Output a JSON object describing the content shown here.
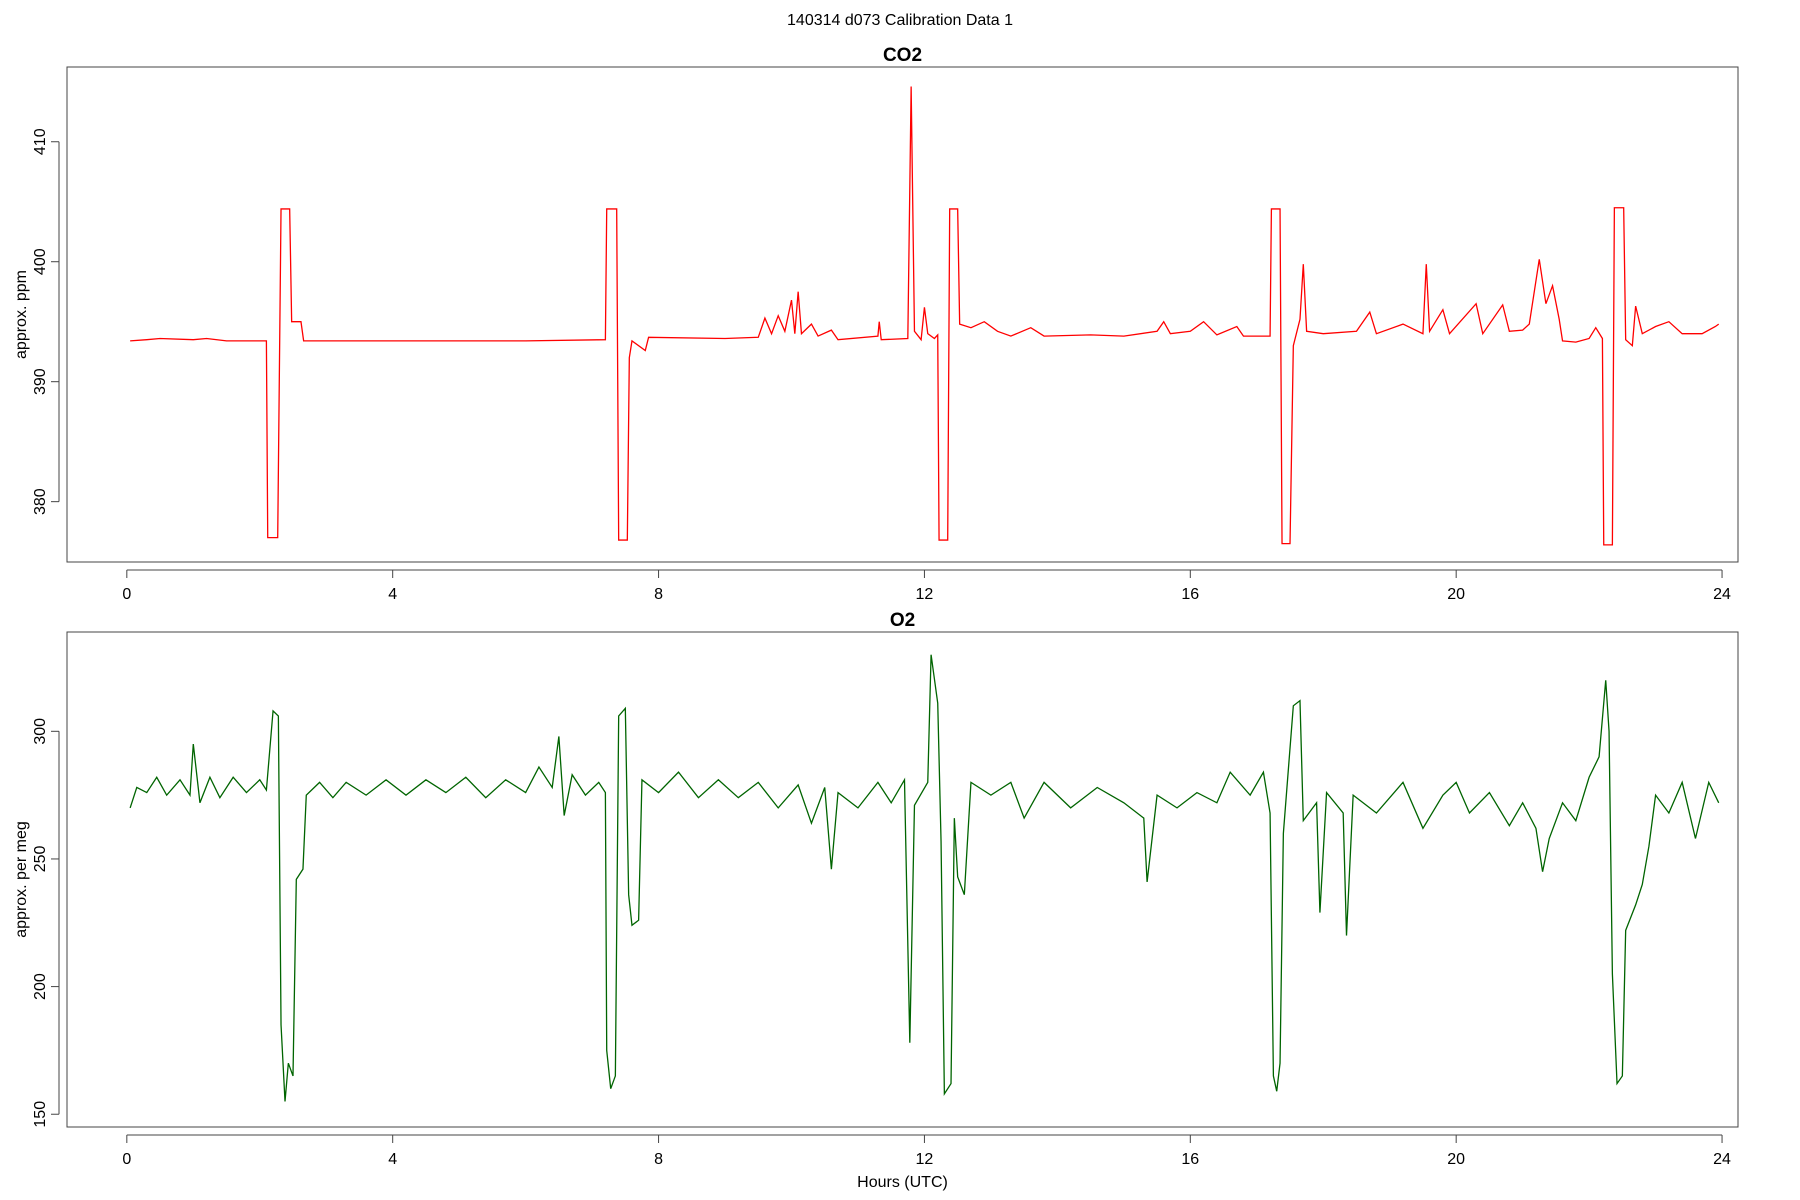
{
  "title": "140314   d073   Calibration Data 1",
  "chart_data": [
    {
      "type": "line",
      "title": "CO2",
      "ylabel": "approx. ppm",
      "color": "#ff0000",
      "x": [
        0.05,
        0.3,
        0.5,
        1.0,
        1.2,
        1.5,
        2.1,
        2.12,
        2.27,
        2.32,
        2.45,
        2.48,
        2.62,
        2.66,
        3.0,
        4.0,
        5.0,
        6.0,
        7.2,
        7.22,
        7.37,
        7.4,
        7.53,
        7.56,
        7.6,
        7.8,
        7.85,
        9.0,
        9.5,
        9.6,
        9.7,
        9.8,
        9.9,
        10.0,
        10.05,
        10.1,
        10.15,
        10.3,
        10.4,
        10.6,
        10.7,
        11.3,
        11.32,
        11.35,
        11.75,
        11.8,
        11.85,
        11.95,
        12.0,
        12.05,
        12.15,
        12.2,
        12.22,
        12.35,
        12.38,
        12.5,
        12.53,
        12.7,
        12.9,
        13.1,
        13.3,
        13.6,
        13.8,
        14.5,
        15.0,
        15.5,
        15.6,
        15.7,
        16.0,
        16.2,
        16.4,
        16.7,
        16.8,
        17.2,
        17.22,
        17.35,
        17.38,
        17.5,
        17.55,
        17.65,
        17.7,
        17.75,
        18.0,
        18.5,
        18.7,
        18.8,
        19.2,
        19.5,
        19.55,
        19.6,
        19.8,
        19.9,
        20.3,
        20.4,
        20.7,
        20.8,
        21.0,
        21.1,
        21.25,
        21.35,
        21.45,
        21.55,
        21.6,
        21.8,
        22.0,
        22.1,
        22.2,
        22.22,
        22.35,
        22.38,
        22.52,
        22.55,
        22.65,
        22.7,
        22.8,
        23.0,
        23.2,
        23.4,
        23.7,
        23.9,
        23.95
      ],
      "values": [
        393.4,
        393.5,
        393.6,
        393.5,
        393.6,
        393.4,
        393.4,
        377.0,
        377.0,
        404.4,
        404.4,
        395.0,
        395.0,
        393.4,
        393.4,
        393.4,
        393.4,
        393.4,
        393.5,
        404.4,
        404.4,
        376.8,
        376.8,
        392.0,
        393.4,
        392.6,
        393.7,
        393.6,
        393.7,
        395.3,
        394.0,
        395.5,
        394.2,
        396.8,
        394.0,
        397.5,
        394.0,
        394.8,
        393.8,
        394.3,
        393.5,
        393.8,
        395.0,
        393.5,
        393.6,
        414.6,
        394.2,
        393.5,
        396.2,
        394.0,
        393.6,
        393.9,
        376.8,
        376.8,
        404.4,
        404.4,
        394.8,
        394.5,
        395.0,
        394.2,
        393.8,
        394.5,
        393.8,
        393.9,
        393.8,
        394.2,
        395.0,
        394.0,
        394.2,
        395.0,
        393.9,
        394.6,
        393.8,
        393.8,
        404.4,
        404.4,
        376.5,
        376.5,
        393.0,
        395.2,
        399.8,
        394.2,
        394.0,
        394.2,
        395.8,
        394.0,
        394.8,
        394.0,
        399.8,
        394.2,
        396.0,
        394.0,
        396.5,
        394.0,
        396.4,
        394.2,
        394.3,
        394.8,
        400.2,
        396.5,
        398.0,
        395.2,
        393.4,
        393.3,
        393.6,
        394.5,
        393.6,
        376.4,
        376.4,
        404.5,
        404.5,
        393.5,
        393.0,
        396.3,
        394.0,
        394.6,
        395.0,
        394.0,
        394.0,
        394.6,
        394.8
      ],
      "xlim": [
        -0.9,
        24.24
      ],
      "xticks": [
        0,
        4,
        8,
        12,
        16,
        20,
        24
      ],
      "ylim": [
        374.97,
        416.23
      ],
      "yticks": [
        380,
        390,
        400,
        410
      ]
    },
    {
      "type": "line",
      "title": "O2",
      "ylabel": "approx. per meg",
      "xlabel": "Hours (UTC)",
      "color": "#006400",
      "x": [
        0.05,
        0.15,
        0.3,
        0.45,
        0.6,
        0.8,
        0.95,
        1.0,
        1.1,
        1.25,
        1.4,
        1.6,
        1.8,
        2.0,
        2.1,
        2.2,
        2.28,
        2.32,
        2.38,
        2.43,
        2.5,
        2.55,
        2.65,
        2.7,
        2.9,
        3.1,
        3.3,
        3.6,
        3.9,
        4.2,
        4.5,
        4.8,
        5.1,
        5.4,
        5.7,
        6.0,
        6.2,
        6.4,
        6.5,
        6.58,
        6.7,
        6.9,
        7.1,
        7.2,
        7.22,
        7.28,
        7.35,
        7.4,
        7.5,
        7.55,
        7.6,
        7.7,
        7.75,
        8.0,
        8.3,
        8.6,
        8.9,
        9.2,
        9.5,
        9.8,
        10.1,
        10.3,
        10.5,
        10.6,
        10.7,
        11.0,
        11.3,
        11.5,
        11.7,
        11.78,
        11.85,
        12.05,
        12.1,
        12.2,
        12.25,
        12.3,
        12.4,
        12.45,
        12.5,
        12.6,
        12.7,
        13.0,
        13.3,
        13.5,
        13.8,
        14.2,
        14.6,
        15.0,
        15.3,
        15.35,
        15.5,
        15.8,
        16.1,
        16.4,
        16.6,
        16.9,
        17.1,
        17.2,
        17.25,
        17.3,
        17.35,
        17.4,
        17.55,
        17.65,
        17.7,
        17.9,
        17.95,
        18.05,
        18.3,
        18.35,
        18.45,
        18.8,
        19.2,
        19.5,
        19.8,
        20.0,
        20.2,
        20.5,
        20.8,
        21.0,
        21.2,
        21.3,
        21.4,
        21.6,
        21.8,
        22.0,
        22.15,
        22.25,
        22.3,
        22.35,
        22.42,
        22.5,
        22.55,
        22.7,
        22.8,
        22.9,
        23.0,
        23.2,
        23.4,
        23.6,
        23.8,
        23.95
      ],
      "values": [
        270,
        278,
        276,
        282,
        275,
        281,
        275,
        295,
        272,
        282,
        274,
        282,
        276,
        281,
        277,
        308,
        306,
        185,
        155,
        170,
        165,
        242,
        246,
        275,
        280,
        274,
        280,
        275,
        281,
        275,
        281,
        276,
        282,
        274,
        281,
        276,
        286,
        278,
        298,
        267,
        283,
        275,
        280,
        276,
        175,
        160,
        165,
        306,
        309,
        236,
        224,
        226,
        281,
        276,
        284,
        274,
        281,
        274,
        280,
        270,
        279,
        264,
        278,
        246,
        276,
        270,
        280,
        272,
        281,
        178,
        271,
        280,
        330,
        311,
        257,
        158,
        162,
        266,
        243,
        236,
        280,
        275,
        280,
        266,
        280,
        270,
        278,
        272,
        266,
        241,
        275,
        270,
        276,
        272,
        284,
        275,
        284,
        268,
        165,
        159,
        170,
        260,
        310,
        312,
        265,
        272,
        229,
        276,
        268,
        220,
        275,
        268,
        280,
        262,
        275,
        280,
        268,
        276,
        263,
        272,
        262,
        245,
        258,
        272,
        265,
        282,
        290,
        320,
        300,
        205,
        162,
        165,
        222,
        232,
        240,
        255,
        275,
        268,
        280,
        258,
        280,
        272
      ],
      "xlim": [
        -0.9,
        24.24
      ],
      "xticks": [
        0,
        4,
        8,
        12,
        16,
        20,
        24
      ],
      "ylim": [
        145,
        338.9
      ],
      "yticks": [
        150,
        200,
        250,
        300
      ]
    }
  ]
}
